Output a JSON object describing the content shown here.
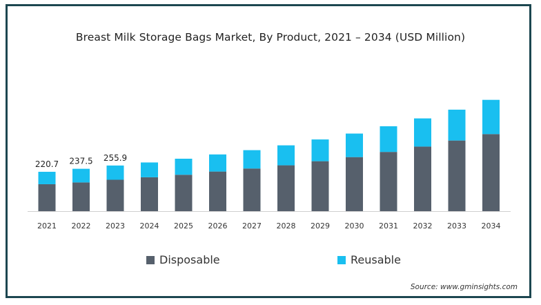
{
  "chart_data": {
    "type": "bar",
    "stacked": true,
    "title": "Breast Milk Storage Bags Market, By Product, 2021 – 2034 (USD Million)",
    "categories": [
      "2021",
      "2022",
      "2023",
      "2024",
      "2025",
      "2026",
      "2027",
      "2028",
      "2029",
      "2030",
      "2031",
      "2032",
      "2033",
      "2034"
    ],
    "series": [
      {
        "name": "Disposable",
        "color": "#56606c",
        "values": [
          151,
          161,
          176,
          190,
          204,
          222,
          239,
          257,
          280,
          303,
          332,
          362,
          396,
          432
        ]
      },
      {
        "name": "Reusable",
        "color": "#19bff0",
        "values": [
          69.7,
          76.5,
          79.9,
          83,
          90,
          96,
          103,
          112,
          122,
          132,
          144,
          158,
          173,
          192
        ]
      }
    ],
    "data_labels": {
      "2021": "220.7",
      "2022": "237.5",
      "2023": "255.9"
    },
    "legend_position": "bottom",
    "source": "Source: www.gminsights.com"
  }
}
